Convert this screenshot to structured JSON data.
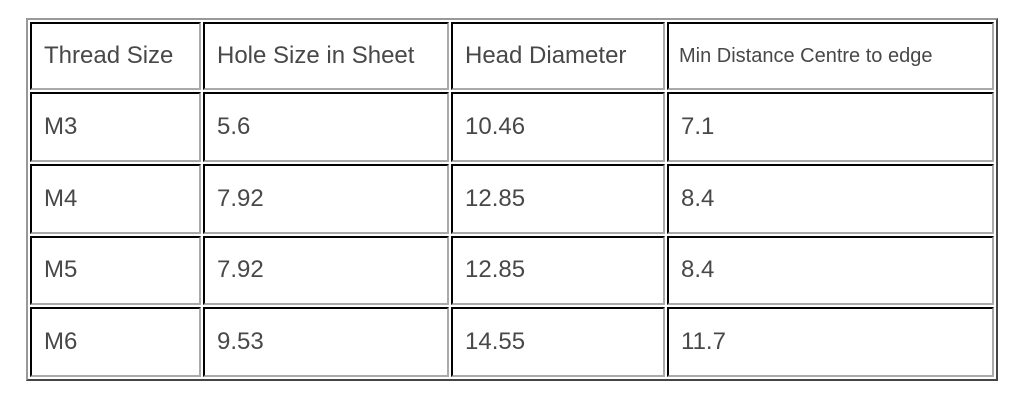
{
  "table": {
    "headers": [
      "Thread Size",
      "Hole Size in Sheet",
      "Head Diameter",
      "Min Distance Centre to edge"
    ],
    "rows": [
      [
        "M3",
        "5.6",
        "10.46",
        "7.1"
      ],
      [
        "M4",
        "7.92",
        "12.85",
        "8.4"
      ],
      [
        "M5",
        "7.92",
        "12.85",
        "8.4"
      ],
      [
        "M6",
        "9.53",
        "14.55",
        "11.7"
      ]
    ]
  }
}
